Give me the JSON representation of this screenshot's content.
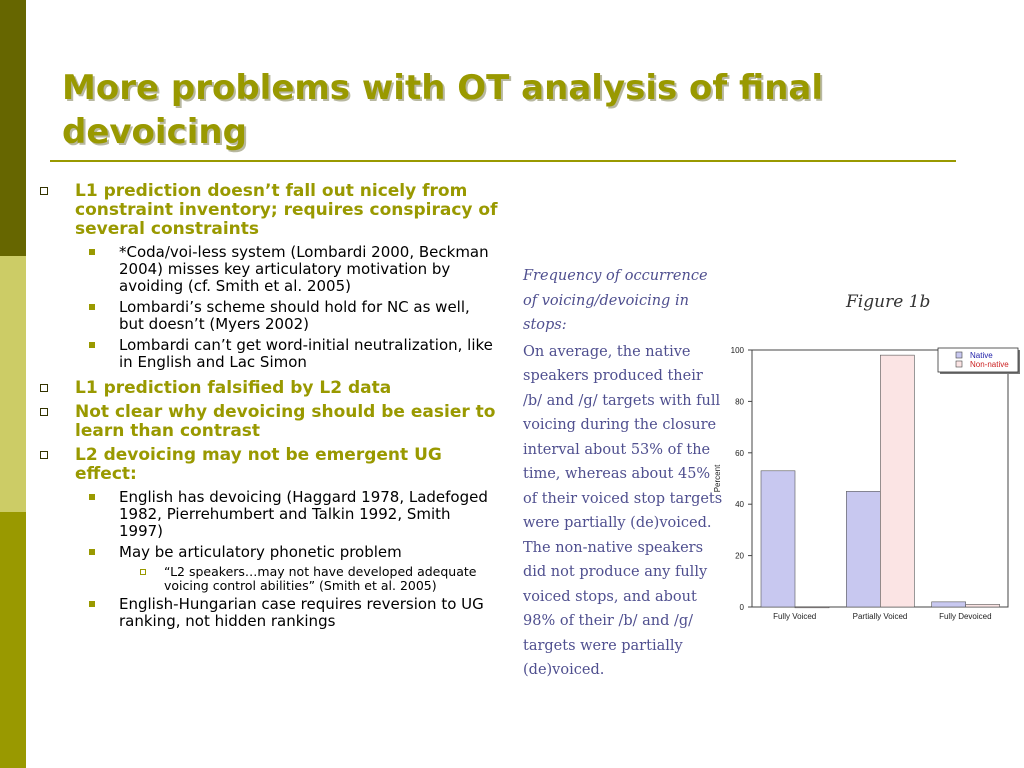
{
  "slide": {
    "title": "More problems with OT analysis of final devoicing",
    "bullets": [
      {
        "level": 1,
        "text": "L1 prediction doesn’t fall out nicely from constraint inventory; requires conspiracy of several constraints"
      },
      {
        "level": 2,
        "text": "*Coda/voi-less system (Lombardi 2000, Beckman 2004) misses key articulatory motivation by avoiding (cf. Smith et al. 2005)"
      },
      {
        "level": 2,
        "text": "Lombardi’s scheme should hold for NC as well, but doesn’t (Myers 2002)"
      },
      {
        "level": 2,
        "text": "Lombardi can’t get word-initial neutralization, like in English and Lac Simon"
      },
      {
        "level": 1,
        "text": "L1 prediction falsified by L2 data"
      },
      {
        "level": 1,
        "text": "Not clear why devoicing should be easier to learn than contrast"
      },
      {
        "level": 1,
        "text": "L2 devoicing may not be emergent UG effect:"
      },
      {
        "level": 2,
        "text": "English has devoicing (Haggard 1978, Ladefoged 1982, Pierrehumbert and Talkin 1992, Smith 1997)"
      },
      {
        "level": 2,
        "text": "May be articulatory phonetic problem"
      },
      {
        "level": 3,
        "text": "“L2 speakers…may not have developed adequate voicing control abilities” (Smith et al. 2005)"
      },
      {
        "level": 2,
        "text": "English-Hungarian case requires reversion to UG ranking, not hidden rankings"
      }
    ],
    "figure": {
      "caption_heading": "Frequency of occurrence of voicing/devoicing in stops:",
      "caption_body": "On average, the native speakers produced their /b/ and /g/ targets with full voicing during the closure interval about 53% of the time, whereas about 45% of their voiced stop targets were partially (de)voiced. The non-native speakers did not produce any fully voiced stops, and about 98% of their /b/ and /g/ targets were partially (de)voiced.",
      "label": "Figure 1b"
    },
    "colors": {
      "bands": [
        "#666600",
        "#cccc66",
        "#999900"
      ],
      "title": "#999900",
      "caption": "#4f4f8f",
      "native_fill": "#c8c8f0",
      "non_native_fill": "#fbe4e4",
      "non_native_legend_text": "#cc2222",
      "native_legend_text": "#2222aa"
    }
  },
  "chart_data": {
    "type": "bar",
    "categories": [
      "Fully Voiced",
      "Partially Voiced",
      "Fully Devoiced"
    ],
    "series": [
      {
        "name": "Native",
        "values": [
          53,
          45,
          2
        ]
      },
      {
        "name": "Non-native",
        "values": [
          0,
          98,
          1
        ]
      }
    ],
    "ylabel": "Percent",
    "ylim": [
      0,
      100
    ],
    "yticks": [
      0,
      20,
      40,
      60,
      80,
      100
    ],
    "legend_position": "top-right"
  }
}
